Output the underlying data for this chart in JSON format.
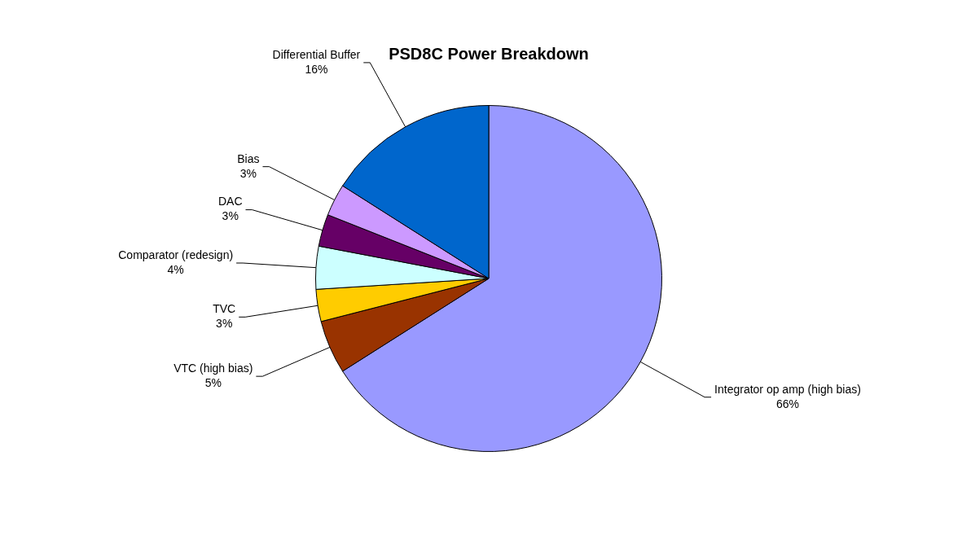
{
  "chart_data": {
    "type": "pie",
    "title": "PSD8C Power Breakdown",
    "categories": [
      "Integrator op amp (high bias)",
      "VTC (high bias)",
      "TVC",
      "Comparator (redesign)",
      "DAC",
      "Bias",
      "Differential Buffer"
    ],
    "values": [
      66,
      5,
      3,
      4,
      3,
      3,
      16
    ],
    "value_labels": [
      "66%",
      "5%",
      "3%",
      "4%",
      "3%",
      "3%",
      "16%"
    ],
    "colors": [
      "#9999ff",
      "#993300",
      "#ffcc00",
      "#ccffff",
      "#660066",
      "#cc99ff",
      "#0066cc"
    ],
    "legend": false
  }
}
